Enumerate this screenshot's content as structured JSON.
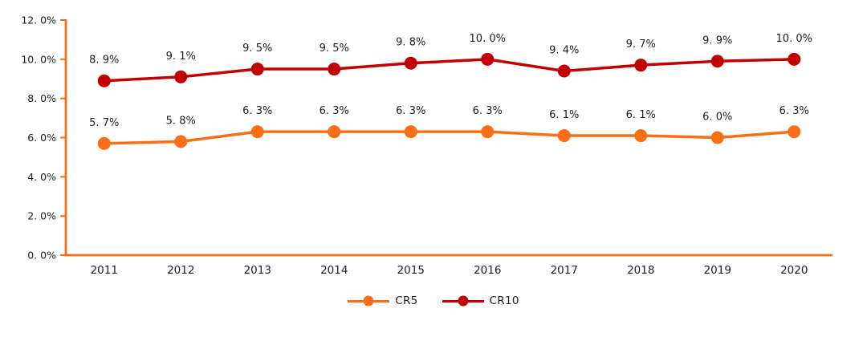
{
  "chart_data": {
    "type": "line",
    "title": "",
    "xlabel": "",
    "ylabel": "",
    "categories": [
      "2011",
      "2012",
      "2013",
      "2014",
      "2015",
      "2016",
      "2017",
      "2018",
      "2019",
      "2020"
    ],
    "series": [
      {
        "name": "CR5",
        "color": "#F96E17",
        "values": [
          5.7,
          5.8,
          6.3,
          6.3,
          6.3,
          6.3,
          6.1,
          6.1,
          6.0,
          6.3
        ],
        "point_labels": [
          "5. 7%",
          "5. 8%",
          "6. 3%",
          "6. 3%",
          "6. 3%",
          "6. 3%",
          "6. 1%",
          "6. 1%",
          "6. 0%",
          "6. 3%"
        ]
      },
      {
        "name": "CR10",
        "color": "#C00000",
        "values": [
          8.9,
          9.1,
          9.5,
          9.5,
          9.8,
          10.0,
          9.4,
          9.7,
          9.9,
          10.0
        ],
        "point_labels": [
          "8. 9%",
          "9. 1%",
          "9. 5%",
          "9. 5%",
          "9. 8%",
          "10. 0%",
          "9. 4%",
          "9. 7%",
          "9. 9%",
          "10. 0%"
        ]
      }
    ],
    "ylim": [
      0,
      12
    ],
    "ytick_step": 2,
    "ytick_labels": [
      "0. 0%",
      "2. 0%",
      "4. 0%",
      "6. 0%",
      "8. 0%",
      "10. 0%",
      "12. 0%"
    ],
    "grid": false,
    "axis_color": "#F96E17",
    "text_color": "#1C1C1C",
    "legend_position": "bottom-center",
    "legend": [
      {
        "label": "CR5"
      },
      {
        "label": "CR10"
      }
    ]
  }
}
